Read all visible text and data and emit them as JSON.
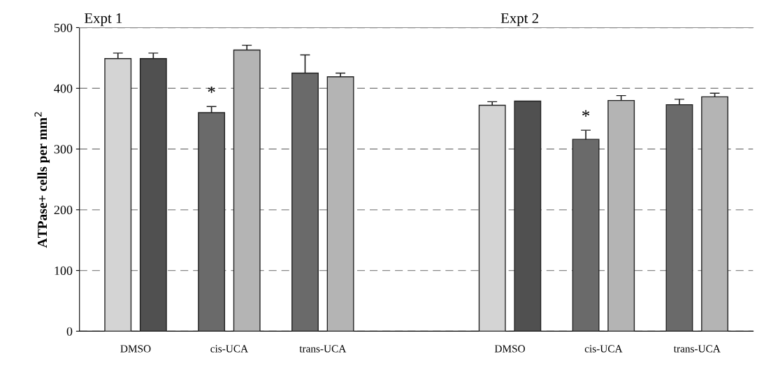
{
  "chart_data": {
    "type": "bar",
    "ylabel": "ATPase+ cells per mm$^{2}$",
    "categories": [
      "DMSO",
      "cis-UCA",
      "trans-UCA",
      null,
      "DMSO",
      "cis-UCA",
      "trans-UCA"
    ],
    "series": [
      {
        "values": [
          449,
          360,
          425,
          null,
          372,
          316,
          373
        ],
        "colors": [
          "#d4d4d4",
          "#6a6a6a",
          "#6a6a6a",
          null,
          "#d4d4d4",
          "#6a6a6a",
          "#6a6a6a"
        ],
        "errors": [
          9,
          10,
          30,
          null,
          6,
          15,
          9
        ]
      },
      {
        "values": [
          449,
          463,
          419,
          null,
          379,
          380,
          386
        ],
        "colors": [
          "#505050",
          "#b4b4b4",
          "#b4b4b4",
          null,
          "#505050",
          "#b4b4b4",
          "#b4b4b4"
        ],
        "errors": [
          9,
          8,
          6,
          null,
          null,
          8,
          6
        ]
      }
    ],
    "ylim": [
      0,
      500
    ],
    "yticks": [
      0,
      100,
      200,
      300,
      400,
      500
    ],
    "grid": "y",
    "line_style": "dashed",
    "annotations": [
      "Expt 1",
      "Expt 2",
      "*",
      "*"
    ]
  }
}
